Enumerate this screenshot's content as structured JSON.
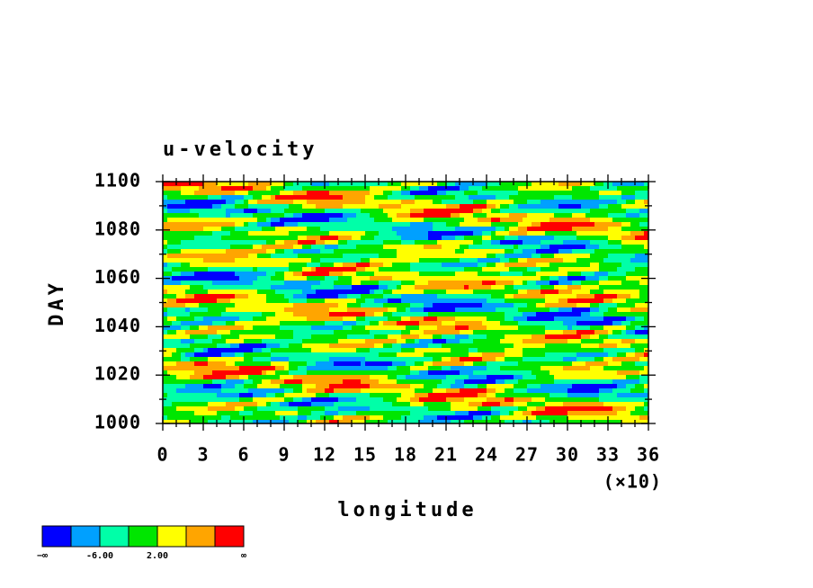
{
  "chart_data": {
    "type": "contour",
    "title": "u-velocity",
    "xlabel": "longitude",
    "ylabel": "DAY",
    "x_multiplier": "(×10)",
    "xlim": [
      0,
      36
    ],
    "xticks": [
      0,
      3,
      6,
      9,
      12,
      15,
      18,
      21,
      24,
      27,
      30,
      33,
      36
    ],
    "ylim": [
      1000,
      1100
    ],
    "yticks": [
      1000,
      1020,
      1040,
      1060,
      1080,
      1100
    ],
    "colorbar": {
      "colors": [
        "#0000ff",
        "#00a0ff",
        "#00ffa8",
        "#00e600",
        "#ffff00",
        "#ffa500",
        "#ff0000"
      ],
      "low_label": "−∞",
      "high_label": "∞",
      "levels": [
        {
          "value": -6,
          "label": "-6.00"
        },
        {
          "value": 2,
          "label": "2.00"
        }
      ]
    }
  }
}
